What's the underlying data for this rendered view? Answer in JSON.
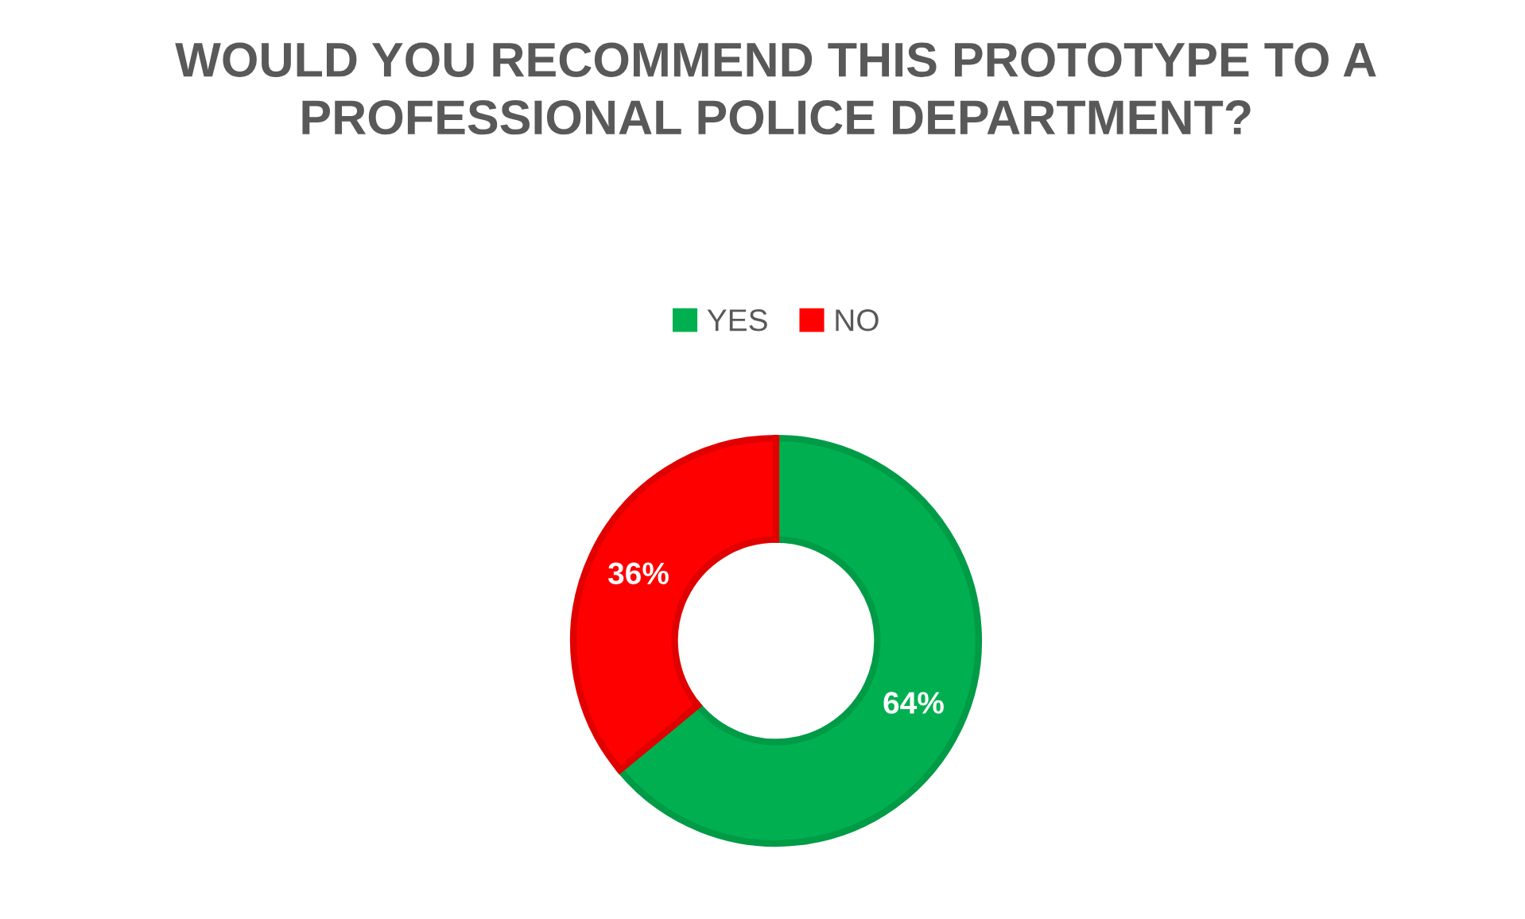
{
  "chart_data": {
    "type": "donut",
    "title": "WOULD YOU RECOMMEND THIS PROTOTYPE TO A PROFESSIONAL POLICE DEPARTMENT?",
    "categories": [
      "YES",
      "NO"
    ],
    "values": [
      64,
      36
    ],
    "colors": [
      "#00b050",
      "#ff0000"
    ],
    "value_labels": [
      "64%",
      "36%"
    ],
    "legend": "top"
  }
}
